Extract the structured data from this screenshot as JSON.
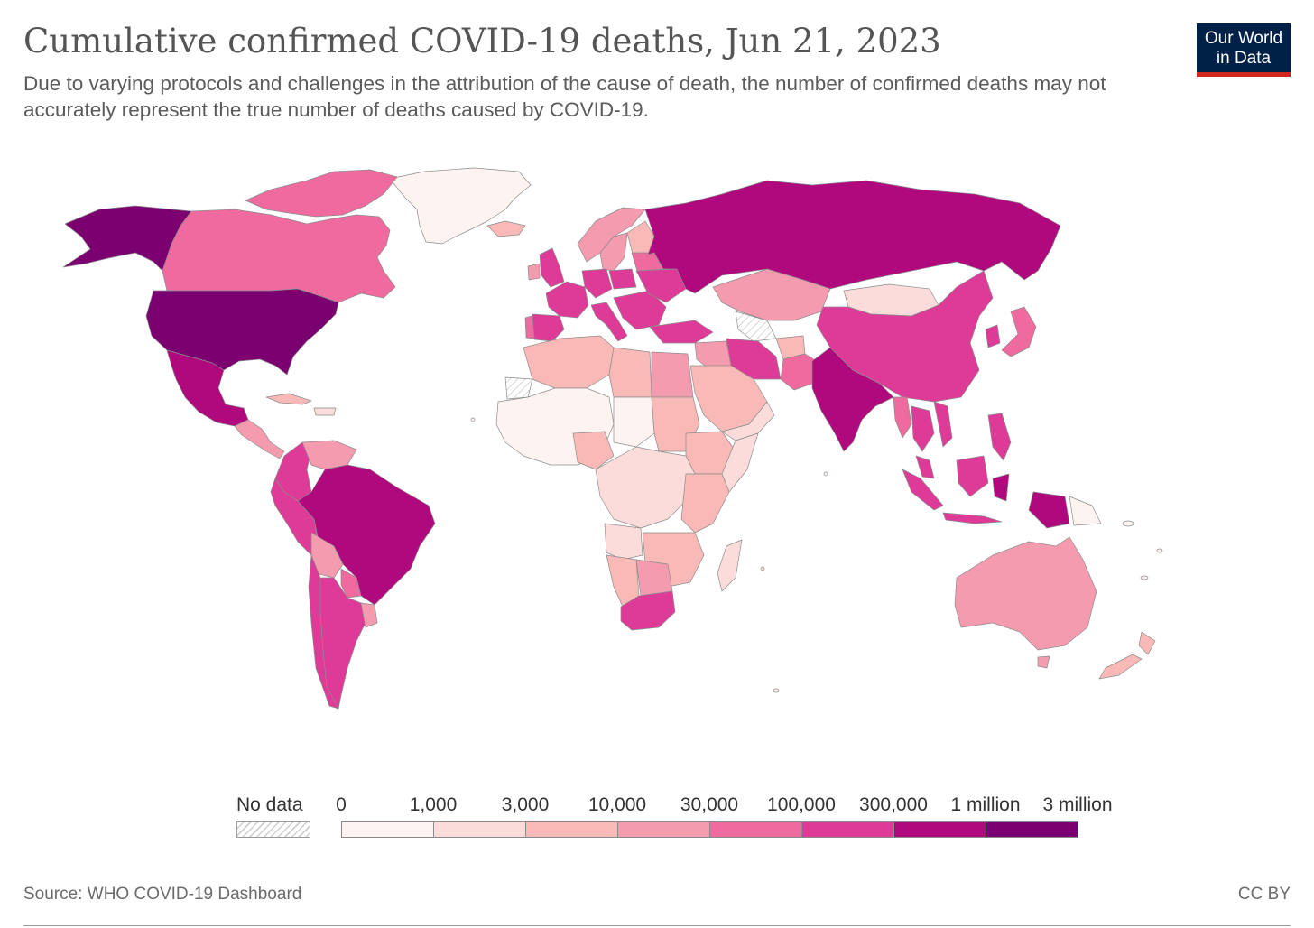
{
  "header": {
    "title": "Cumulative confirmed COVID-19 deaths, Jun 21, 2023",
    "subtitle": "Due to varying protocols and challenges in the attribution of the cause of death, the number of confirmed deaths may not accurately represent the true number of deaths caused by COVID-19."
  },
  "logo": {
    "line1": "Our World",
    "line2": "in Data"
  },
  "legend": {
    "no_data_label": "No data",
    "ticks": [
      "0",
      "1,000",
      "3,000",
      "10,000",
      "30,000",
      "100,000",
      "300,000",
      "1 million",
      "3 million"
    ],
    "colors": [
      "#fdf3f1",
      "#fbdcda",
      "#f9b9b7",
      "#f59bb0",
      "#ef6a9e",
      "#de3a97",
      "#b0087d",
      "#7a016f"
    ]
  },
  "footer": {
    "source": "Source: WHO COVID-19 Dashboard",
    "license": "CC BY"
  },
  "map_icons": {
    "map": "world-choropleth-map"
  }
}
